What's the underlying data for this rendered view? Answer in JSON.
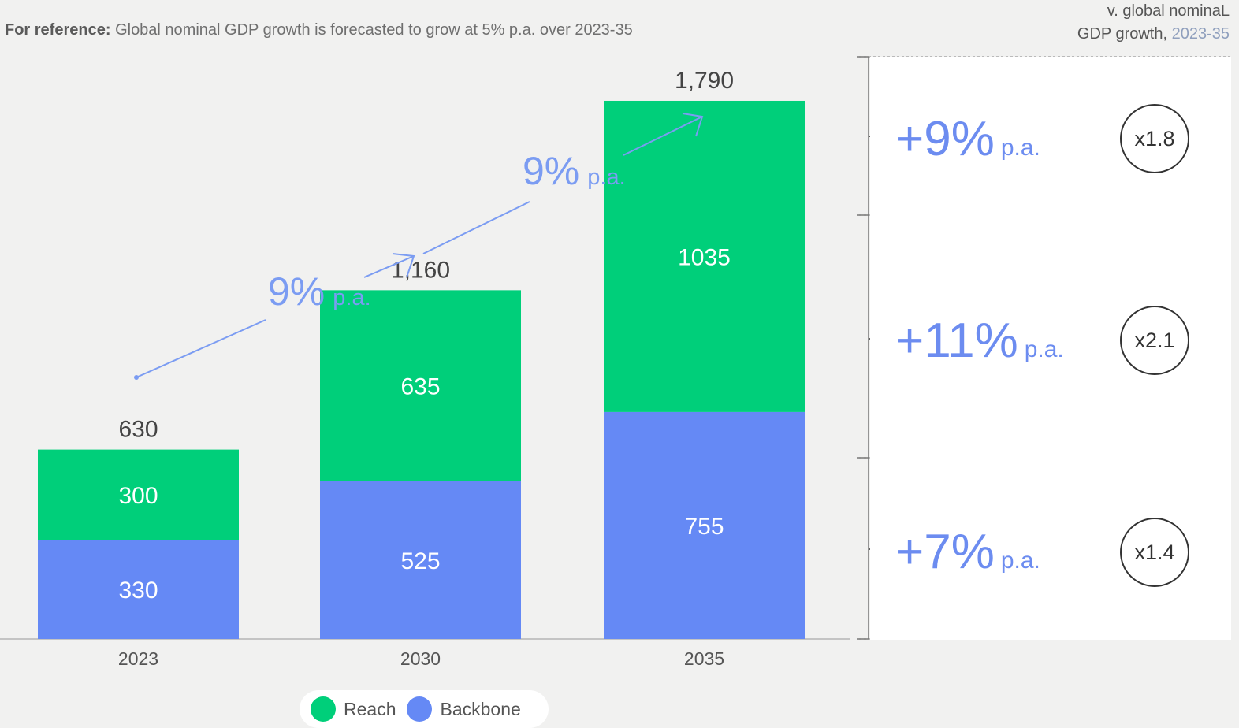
{
  "header": {
    "reference_bold": "For reference:",
    "reference_text": "Global nominal GDP growth is forecasted to grow at 5% p.a. over 2023-35",
    "right_line1": "v. global nominaL",
    "right_line2": "GDP growth,",
    "right_period": "2023-35"
  },
  "chart_data": {
    "type": "bar",
    "stacked": true,
    "categories": [
      "2023",
      "2030",
      "2035"
    ],
    "series": [
      {
        "name": "Backbone",
        "values": [
          330,
          525,
          755
        ],
        "color": "#6589f5"
      },
      {
        "name": "Reach",
        "values": [
          300,
          635,
          1035
        ],
        "color": "#00cf7a"
      }
    ],
    "totals": [
      "630",
      "1,160",
      "1,790"
    ],
    "ylim": [
      0,
      1900
    ],
    "legend": "bottom",
    "growth_annotations": [
      {
        "from": "2023",
        "to": "2030",
        "value": "9%",
        "unit": "p.a."
      },
      {
        "from": "2030",
        "to": "2035",
        "value": "9%",
        "unit": "p.a."
      }
    ]
  },
  "legend": {
    "items": [
      {
        "label": "Reach",
        "color": "#00cf7a"
      },
      {
        "label": "Backbone",
        "color": "#6589f5"
      }
    ]
  },
  "side_panel": {
    "rows": [
      {
        "rate": "+9%",
        "unit": "p.a.",
        "multiplier": "x1.8"
      },
      {
        "rate": "+11%",
        "unit": "p.a.",
        "multiplier": "x2.1"
      },
      {
        "rate": "+7%",
        "unit": "p.a.",
        "multiplier": "x1.4"
      }
    ]
  }
}
